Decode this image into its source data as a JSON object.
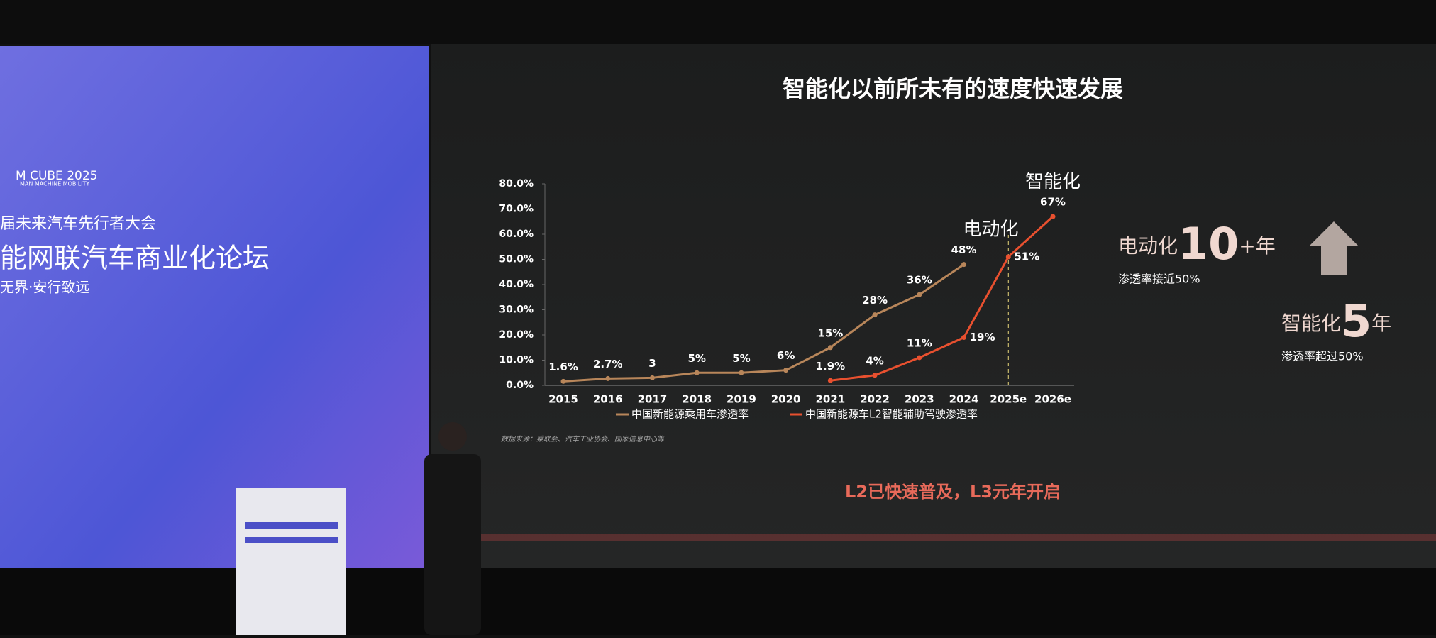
{
  "chart_data": {
    "type": "line",
    "title": "智能化以前所未有的速度快速发展",
    "categories": [
      "2015",
      "2016",
      "2017",
      "2018",
      "2019",
      "2020",
      "2021",
      "2022",
      "2023",
      "2024",
      "2025e",
      "2026e"
    ],
    "series": [
      {
        "name": "中国新能源乘用车渗透率",
        "color": "#b8865a",
        "values": [
          1.6,
          2.7,
          3,
          5,
          5,
          6,
          15,
          28,
          36,
          48,
          null,
          null
        ],
        "value_labels": [
          "1.6%",
          "2.7%",
          "3",
          "5%",
          "5%",
          "6%",
          "15%",
          "28%",
          "36%",
          "48%",
          null,
          null
        ]
      },
      {
        "name": "中国新能源车L2智能辅助驾驶渗透率",
        "color": "#e8502f",
        "values": [
          null,
          null,
          null,
          null,
          null,
          null,
          1.9,
          4,
          11,
          19,
          51,
          67
        ],
        "value_labels": [
          null,
          null,
          null,
          null,
          null,
          null,
          "1.9%",
          "4%",
          "11%",
          "19%",
          "51%",
          "67%"
        ]
      }
    ],
    "ylim": [
      0,
      80
    ],
    "yticks": [
      {
        "value": 0,
        "label": "0.0%"
      },
      {
        "value": 10,
        "label": "10.0%"
      },
      {
        "value": 20,
        "label": "20.0%"
      },
      {
        "value": 30,
        "label": "30.0%"
      },
      {
        "value": 40,
        "label": "40.0%"
      },
      {
        "value": 50,
        "label": "50.0%"
      },
      {
        "value": 60,
        "label": "60.0%"
      },
      {
        "value": 70,
        "label": "70.0%"
      },
      {
        "value": 80,
        "label": "80.0%"
      }
    ],
    "annotations": [
      "电动化",
      "智能化"
    ],
    "source": "数据来源：乘联会、汽车工业协会、国家信息中心等",
    "subtitle": "L2已快速普及，L3元年开启"
  },
  "side_notes": [
    {
      "parts": [
        "电动化",
        "10",
        "+年"
      ],
      "note": "渗透率接近50%"
    },
    {
      "parts": [
        "智能化",
        "5",
        "年"
      ],
      "note": "渗透率超过50%"
    }
  ],
  "banner": {
    "logo": "M CUBE 2025",
    "logo_sub": "MAN MACHINE MOBILITY",
    "event": "届未来汽车先行者大会",
    "forum": "能网联汽车商业化论坛",
    "slogan": "无界·安行致远"
  }
}
